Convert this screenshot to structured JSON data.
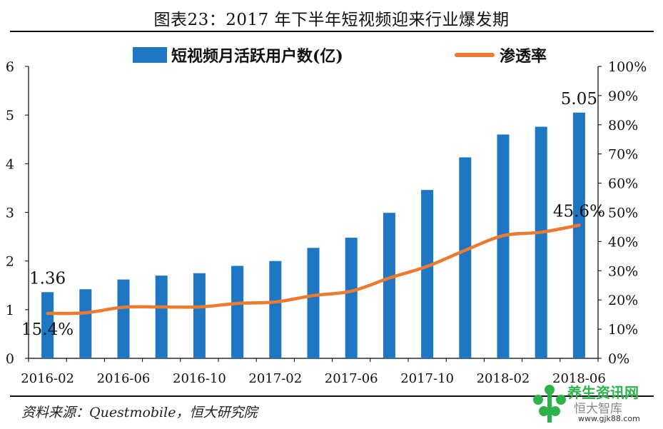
{
  "title": "图表23：2017 年下半年短视频迎来行业爆发期",
  "source": "资料来源：Questmobile，恒大研究院",
  "watermark": {
    "line1": "养生资讯网",
    "line2": "恒大智库",
    "line3": "www.gjk88.com",
    "icon": "green-tree-logo-icon"
  },
  "colors": {
    "bar": "#1f77c4",
    "line": "#ec7a30",
    "axis": "#000000"
  },
  "chart_data": {
    "type": "bar",
    "legend_placement": "top",
    "grid": false,
    "categories": [
      "2016-02",
      "2016-04",
      "2016-06",
      "2016-08",
      "2016-10",
      "2016-12",
      "2017-02",
      "2017-04",
      "2017-06",
      "2017-08",
      "2017-10",
      "2017-12",
      "2018-02",
      "2018-04",
      "2018-06"
    ],
    "x_tick_labels": [
      "2016-02",
      "2016-06",
      "2016-10",
      "2017-02",
      "2017-06",
      "2017-10",
      "2018-02",
      "2018-06"
    ],
    "series": [
      {
        "name": "短视频月活跃用户数(亿)",
        "type": "bar",
        "axis": "left",
        "values": [
          1.36,
          1.42,
          1.62,
          1.7,
          1.75,
          1.9,
          2.0,
          2.27,
          2.48,
          2.99,
          3.46,
          4.13,
          4.6,
          4.76,
          5.05
        ]
      },
      {
        "name": "渗透率",
        "type": "line",
        "axis": "right",
        "values": [
          15.4,
          15.6,
          17.5,
          17.6,
          17.6,
          18.8,
          19.3,
          21.5,
          23.0,
          27.5,
          31.5,
          37.0,
          42.0,
          43.2,
          45.6
        ]
      }
    ],
    "y_left": {
      "min": 0,
      "max": 6,
      "ticks": [
        "0",
        "1",
        "2",
        "3",
        "4",
        "5",
        "6"
      ]
    },
    "y_right": {
      "min": 0,
      "max": 100,
      "ticks": [
        "0%",
        "10%",
        "20%",
        "30%",
        "40%",
        "50%",
        "60%",
        "70%",
        "80%",
        "90%",
        "100%"
      ]
    },
    "annotations": [
      {
        "text": "1.36",
        "series": 0,
        "index": 0,
        "position": "above"
      },
      {
        "text": "5.05",
        "series": 0,
        "index": 14,
        "position": "above"
      },
      {
        "text": "15.4%",
        "series": 1,
        "index": 0,
        "position": "below"
      },
      {
        "text": "45.6%",
        "series": 1,
        "index": 14,
        "position": "above"
      }
    ]
  }
}
